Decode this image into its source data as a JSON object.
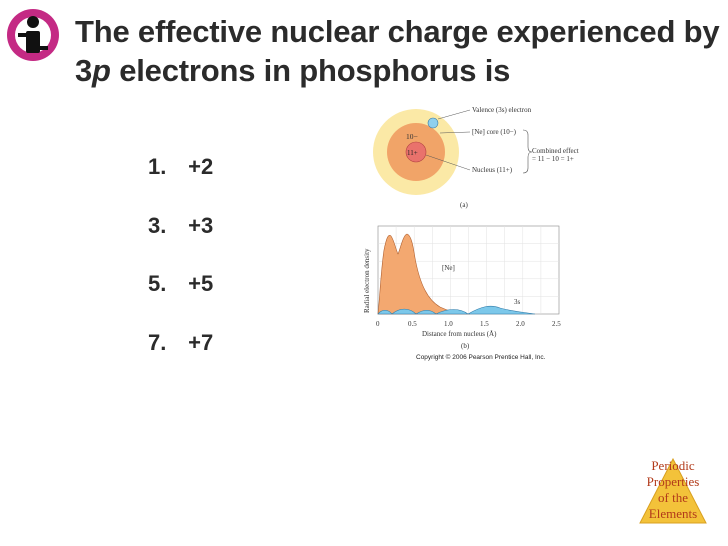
{
  "slide": {
    "title_part1": "The effective nuclear charge experienced by 3",
    "title_italic": "p",
    "title_part2": " electrons in phosphorus is",
    "choices": [
      {
        "num": "1.",
        "text": "+2"
      },
      {
        "num": "3.",
        "text": "+3"
      },
      {
        "num": "5.",
        "text": "+5"
      },
      {
        "num": "7.",
        "text": "+7"
      }
    ],
    "corner_label": [
      "Periodic",
      "Properties",
      "of the",
      "Elements"
    ],
    "copyright": "Copyright © 2006 Pearson Prentice Hall, Inc."
  },
  "figure_a": {
    "label_valence": "Valence (3s) electron",
    "label_core": "[Ne] core (10−)",
    "label_nucleus": "Nucleus (11+)",
    "label_combined_1": "Combined effect",
    "label_combined_2": "= 11 − 10 = 1+",
    "core_charge": "10−",
    "nucleus_charge": "11+",
    "caption": "(a)"
  },
  "figure_b": {
    "ylabel": "Radial electron density",
    "xlabel": "Distance from nucleus (Å)",
    "xticks": [
      "0",
      "0.5",
      "1.0",
      "1.5",
      "2.0",
      "2.5"
    ],
    "label_ne": "[Ne]",
    "label_3s": "3s",
    "caption": "(b)"
  },
  "colors": {
    "outer_shell": "#fbe9a6",
    "core": "#f1a468",
    "nucleus": "#e9726c",
    "valence": "#8fd0ee",
    "ne_fill": "#f3a870",
    "s_fill": "#7cc8ea",
    "corner_fill": "#f3c23a"
  }
}
